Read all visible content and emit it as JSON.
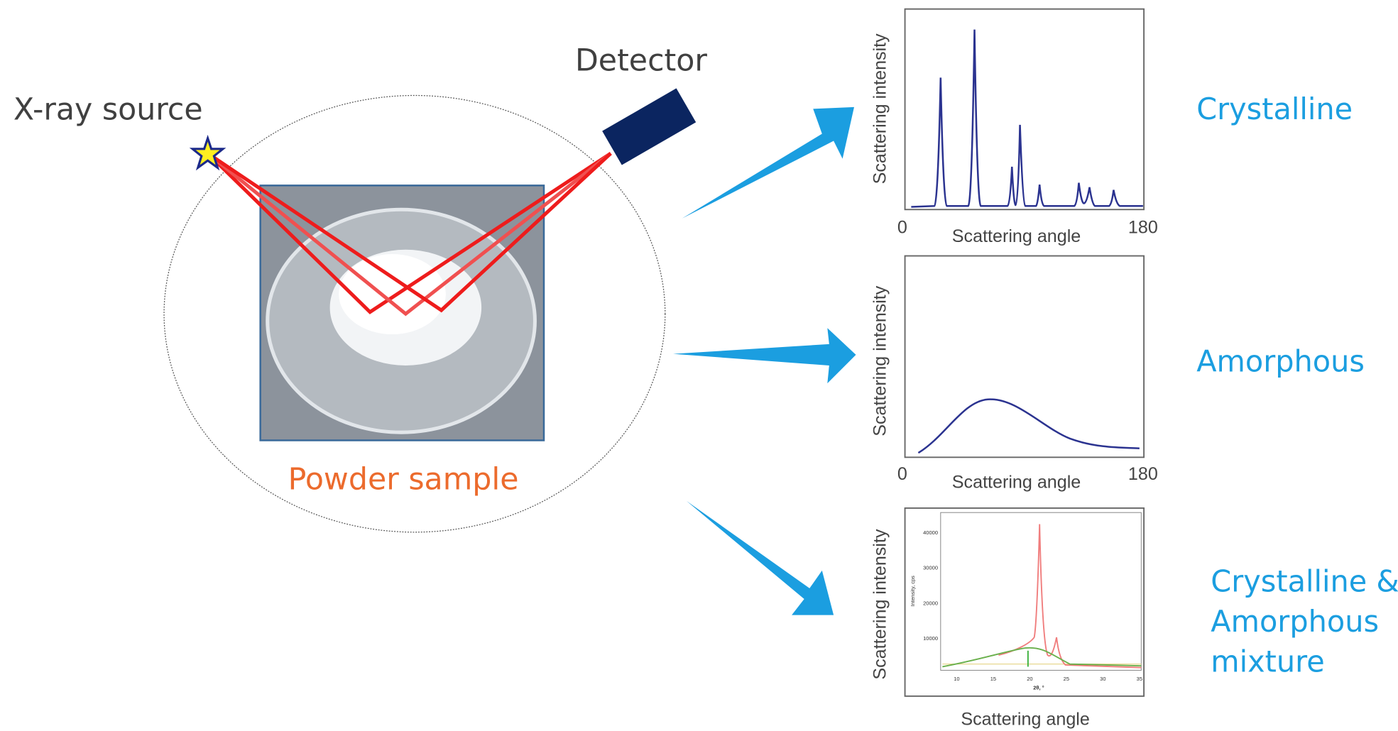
{
  "setup": {
    "source_label": "X-ray source",
    "detector_label": "Detector",
    "sample_label": "Powder sample"
  },
  "plots": [
    {
      "result": [
        "Crystalline"
      ],
      "y_label": "Scattering intensity",
      "x_label": "Scattering angle",
      "x_start": "0",
      "x_end": "180"
    },
    {
      "result": [
        "Amorphous"
      ],
      "y_label": "Scattering intensity",
      "x_label": "Scattering angle",
      "x_start": "0",
      "x_end": "180"
    },
    {
      "result": [
        "Crystalline &",
        "Amorphous",
        "mixture"
      ],
      "y_label": "Scattering intensity",
      "x_label": "Scattering angle",
      "inner_y_label": "Intensity, cps",
      "inner_x_label": "2θ, °",
      "inner_y_ticks": [
        "40000",
        "30000",
        "20000",
        "10000"
      ],
      "inner_x_ticks": [
        "10",
        "15",
        "20",
        "25",
        "30",
        "35"
      ]
    }
  ]
}
